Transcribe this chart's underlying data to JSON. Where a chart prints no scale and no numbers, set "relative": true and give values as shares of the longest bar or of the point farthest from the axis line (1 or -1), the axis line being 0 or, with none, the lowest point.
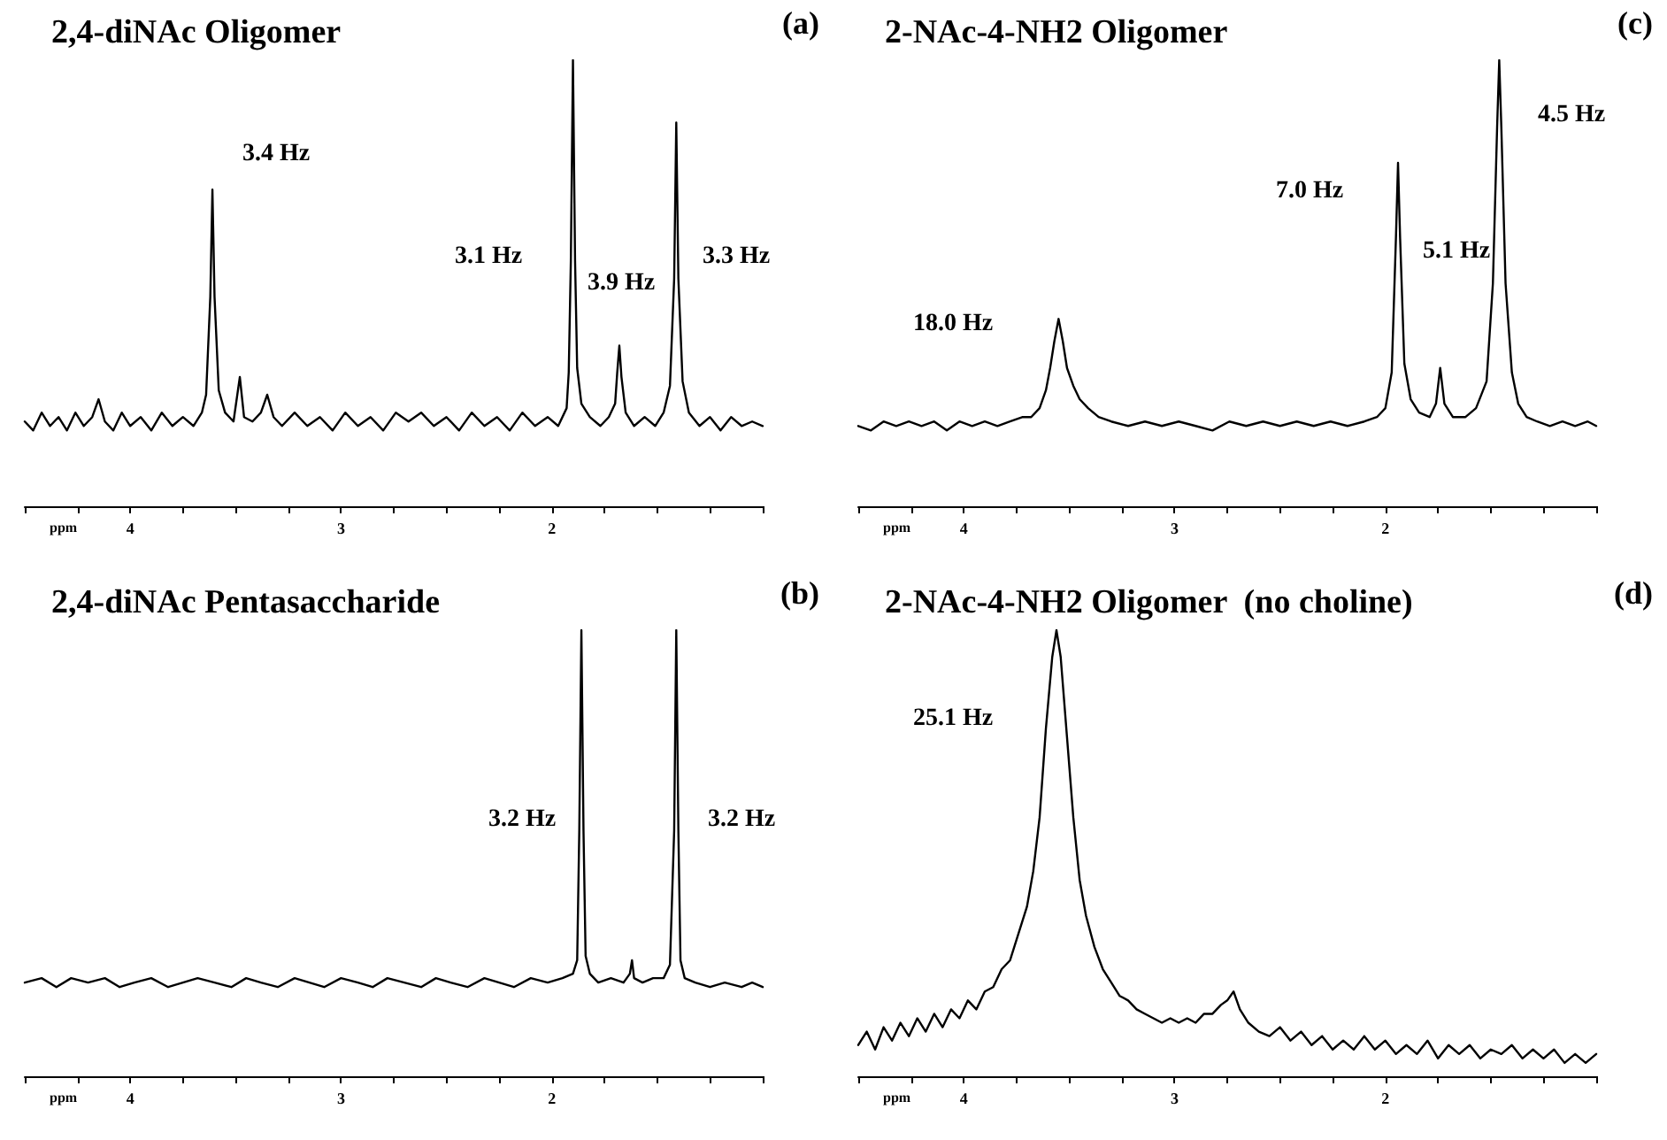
{
  "chart_data": [
    {
      "type": "line",
      "title": "2,4-diNAc Oligomer",
      "xlabel": "ppm",
      "relative": true,
      "grid": false,
      "tick_labels": "x",
      "color": "#000000",
      "xlim": [
        4.5,
        1.0
      ],
      "xticks": [
        {
          "value": 4.5,
          "label": null
        },
        {
          "value": 4.25,
          "label": null
        },
        4,
        {
          "value": 3.75,
          "label": null
        },
        {
          "value": 3.5,
          "label": null
        },
        {
          "value": 3.25,
          "label": null
        },
        3,
        {
          "value": 2.75,
          "label": null
        },
        {
          "value": 2.5,
          "label": null
        },
        {
          "value": 2.25,
          "label": null
        },
        2,
        {
          "value": 1.75,
          "label": null
        },
        {
          "value": 1.5,
          "label": null
        },
        {
          "value": 1.25,
          "label": null
        },
        {
          "value": 1.0,
          "label": null
        }
      ],
      "x": [
        4.5,
        4.46,
        4.42,
        4.38,
        4.34,
        4.3,
        4.26,
        4.22,
        4.18,
        4.15,
        4.12,
        4.08,
        4.04,
        4.0,
        3.95,
        3.9,
        3.85,
        3.8,
        3.75,
        3.7,
        3.66,
        3.64,
        3.62,
        3.61,
        3.6,
        3.58,
        3.55,
        3.51,
        3.48,
        3.46,
        3.42,
        3.38,
        3.35,
        3.32,
        3.28,
        3.22,
        3.16,
        3.1,
        3.04,
        2.98,
        2.92,
        2.86,
        2.8,
        2.74,
        2.68,
        2.62,
        2.56,
        2.5,
        2.44,
        2.38,
        2.32,
        2.26,
        2.2,
        2.14,
        2.08,
        2.02,
        1.97,
        1.93,
        1.92,
        1.91,
        1.9,
        1.89,
        1.88,
        1.86,
        1.82,
        1.77,
        1.73,
        1.7,
        1.69,
        1.68,
        1.67,
        1.65,
        1.61,
        1.56,
        1.51,
        1.47,
        1.44,
        1.42,
        1.41,
        1.4,
        1.38,
        1.35,
        1.3,
        1.25,
        1.2,
        1.15,
        1.1,
        1.05,
        1.0
      ],
      "values": [
        0.19,
        0.17,
        0.21,
        0.18,
        0.2,
        0.17,
        0.21,
        0.18,
        0.2,
        0.24,
        0.19,
        0.17,
        0.21,
        0.18,
        0.2,
        0.17,
        0.21,
        0.18,
        0.2,
        0.18,
        0.21,
        0.25,
        0.47,
        0.71,
        0.47,
        0.26,
        0.21,
        0.19,
        0.29,
        0.2,
        0.19,
        0.21,
        0.25,
        0.2,
        0.18,
        0.21,
        0.18,
        0.2,
        0.17,
        0.21,
        0.18,
        0.2,
        0.17,
        0.21,
        0.19,
        0.21,
        0.18,
        0.2,
        0.17,
        0.21,
        0.18,
        0.2,
        0.17,
        0.21,
        0.18,
        0.2,
        0.18,
        0.22,
        0.3,
        0.55,
        1.0,
        0.55,
        0.31,
        0.23,
        0.2,
        0.18,
        0.2,
        0.23,
        0.3,
        0.36,
        0.29,
        0.21,
        0.18,
        0.2,
        0.18,
        0.21,
        0.27,
        0.51,
        0.86,
        0.51,
        0.28,
        0.21,
        0.18,
        0.2,
        0.17,
        0.2,
        0.18,
        0.19,
        0.18
      ],
      "annotations": [
        "(a)",
        "3.4 Hz",
        "3.1 Hz",
        "3.9 Hz",
        "3.3 Hz"
      ]
    },
    {
      "type": "line",
      "title": "2-NAc-4-NH2 Oligomer",
      "xlabel": "ppm",
      "relative": true,
      "grid": false,
      "tick_labels": "x",
      "color": "#000000",
      "xlim": [
        4.5,
        1.0
      ],
      "xticks": [
        {
          "value": 4.5,
          "label": null
        },
        {
          "value": 4.25,
          "label": null
        },
        4,
        {
          "value": 3.75,
          "label": null
        },
        {
          "value": 3.5,
          "label": null
        },
        {
          "value": 3.25,
          "label": null
        },
        3,
        {
          "value": 2.75,
          "label": null
        },
        {
          "value": 2.5,
          "label": null
        },
        {
          "value": 2.25,
          "label": null
        },
        2,
        {
          "value": 1.75,
          "label": null
        },
        {
          "value": 1.5,
          "label": null
        },
        {
          "value": 1.25,
          "label": null
        },
        {
          "value": 1.0,
          "label": null
        }
      ],
      "x": [
        4.5,
        4.44,
        4.38,
        4.32,
        4.26,
        4.2,
        4.14,
        4.08,
        4.02,
        3.96,
        3.9,
        3.84,
        3.78,
        3.72,
        3.68,
        3.64,
        3.61,
        3.59,
        3.57,
        3.55,
        3.53,
        3.51,
        3.48,
        3.45,
        3.41,
        3.36,
        3.3,
        3.22,
        3.14,
        3.06,
        2.98,
        2.9,
        2.82,
        2.74,
        2.66,
        2.58,
        2.5,
        2.42,
        2.34,
        2.26,
        2.18,
        2.1,
        2.04,
        2.0,
        1.97,
        1.95,
        1.94,
        1.93,
        1.91,
        1.88,
        1.84,
        1.79,
        1.76,
        1.74,
        1.72,
        1.68,
        1.62,
        1.57,
        1.52,
        1.49,
        1.47,
        1.46,
        1.45,
        1.43,
        1.4,
        1.37,
        1.33,
        1.28,
        1.22,
        1.16,
        1.1,
        1.04,
        1.0
      ],
      "values": [
        0.18,
        0.17,
        0.19,
        0.18,
        0.19,
        0.18,
        0.19,
        0.17,
        0.19,
        0.18,
        0.19,
        0.18,
        0.19,
        0.2,
        0.2,
        0.22,
        0.26,
        0.31,
        0.37,
        0.42,
        0.37,
        0.31,
        0.27,
        0.24,
        0.22,
        0.2,
        0.19,
        0.18,
        0.19,
        0.18,
        0.19,
        0.18,
        0.17,
        0.19,
        0.18,
        0.19,
        0.18,
        0.19,
        0.18,
        0.19,
        0.18,
        0.19,
        0.2,
        0.22,
        0.3,
        0.6,
        0.77,
        0.6,
        0.32,
        0.24,
        0.21,
        0.2,
        0.23,
        0.31,
        0.23,
        0.2,
        0.2,
        0.22,
        0.28,
        0.5,
        0.85,
        1.0,
        0.85,
        0.5,
        0.3,
        0.23,
        0.2,
        0.19,
        0.18,
        0.19,
        0.18,
        0.19,
        0.18
      ],
      "annotations": [
        "(c)",
        "18.0 Hz",
        "7.0 Hz",
        "5.1 Hz",
        "4.5 Hz"
      ]
    },
    {
      "type": "line",
      "title": "2,4-diNAc Pentasaccharide",
      "xlabel": "ppm",
      "relative": true,
      "grid": false,
      "tick_labels": "x",
      "color": "#000000",
      "xlim": [
        4.5,
        1.0
      ],
      "xticks": [
        {
          "value": 4.5,
          "label": null
        },
        {
          "value": 4.25,
          "label": null
        },
        4,
        {
          "value": 3.75,
          "label": null
        },
        {
          "value": 3.5,
          "label": null
        },
        {
          "value": 3.25,
          "label": null
        },
        3,
        {
          "value": 2.75,
          "label": null
        },
        {
          "value": 2.5,
          "label": null
        },
        {
          "value": 2.25,
          "label": null
        },
        2,
        {
          "value": 1.75,
          "label": null
        },
        {
          "value": 1.5,
          "label": null
        },
        {
          "value": 1.25,
          "label": null
        },
        {
          "value": 1.0,
          "label": null
        }
      ],
      "x": [
        4.5,
        4.42,
        4.35,
        4.28,
        4.2,
        4.12,
        4.05,
        3.98,
        3.9,
        3.82,
        3.75,
        3.68,
        3.6,
        3.52,
        3.45,
        3.38,
        3.3,
        3.22,
        3.15,
        3.08,
        3.0,
        2.92,
        2.85,
        2.78,
        2.7,
        2.62,
        2.55,
        2.48,
        2.4,
        2.32,
        2.25,
        2.18,
        2.1,
        2.02,
        1.95,
        1.9,
        1.88,
        1.87,
        1.86,
        1.85,
        1.84,
        1.82,
        1.78,
        1.72,
        1.66,
        1.63,
        1.62,
        1.61,
        1.57,
        1.52,
        1.47,
        1.44,
        1.42,
        1.41,
        1.4,
        1.39,
        1.37,
        1.32,
        1.25,
        1.18,
        1.1,
        1.05,
        1.0
      ],
      "values": [
        0.21,
        0.22,
        0.2,
        0.22,
        0.21,
        0.22,
        0.2,
        0.21,
        0.22,
        0.2,
        0.21,
        0.22,
        0.21,
        0.2,
        0.22,
        0.21,
        0.2,
        0.22,
        0.21,
        0.2,
        0.22,
        0.21,
        0.2,
        0.22,
        0.21,
        0.2,
        0.22,
        0.21,
        0.2,
        0.22,
        0.21,
        0.2,
        0.22,
        0.21,
        0.22,
        0.23,
        0.26,
        0.55,
        1.0,
        0.55,
        0.27,
        0.23,
        0.21,
        0.22,
        0.21,
        0.23,
        0.26,
        0.22,
        0.21,
        0.22,
        0.22,
        0.25,
        0.55,
        1.0,
        0.55,
        0.26,
        0.22,
        0.21,
        0.2,
        0.21,
        0.2,
        0.21,
        0.2
      ],
      "annotations": [
        "(b)",
        "3.2 Hz",
        "3.2 Hz"
      ]
    },
    {
      "type": "line",
      "title": "2-NAc-4-NH2 Oligomer  (no choline)",
      "xlabel": "ppm",
      "relative": true,
      "grid": false,
      "tick_labels": "x",
      "color": "#000000",
      "xlim": [
        4.5,
        1.0
      ],
      "xticks": [
        {
          "value": 4.5,
          "label": null
        },
        {
          "value": 4.25,
          "label": null
        },
        4,
        {
          "value": 3.75,
          "label": null
        },
        {
          "value": 3.5,
          "label": null
        },
        {
          "value": 3.25,
          "label": null
        },
        3,
        {
          "value": 2.75,
          "label": null
        },
        {
          "value": 2.5,
          "label": null
        },
        {
          "value": 2.25,
          "label": null
        },
        2,
        {
          "value": 1.75,
          "label": null
        },
        {
          "value": 1.5,
          "label": null
        },
        {
          "value": 1.25,
          "label": null
        },
        {
          "value": 1.0,
          "label": null
        }
      ],
      "x": [
        4.5,
        4.46,
        4.42,
        4.38,
        4.34,
        4.3,
        4.26,
        4.22,
        4.18,
        4.14,
        4.1,
        4.06,
        4.02,
        3.98,
        3.94,
        3.9,
        3.86,
        3.82,
        3.78,
        3.74,
        3.7,
        3.67,
        3.64,
        3.61,
        3.58,
        3.56,
        3.54,
        3.51,
        3.48,
        3.45,
        3.42,
        3.38,
        3.34,
        3.3,
        3.26,
        3.22,
        3.18,
        3.14,
        3.1,
        3.06,
        3.02,
        2.98,
        2.94,
        2.9,
        2.86,
        2.82,
        2.78,
        2.75,
        2.72,
        2.69,
        2.65,
        2.6,
        2.55,
        2.5,
        2.45,
        2.4,
        2.35,
        2.3,
        2.25,
        2.2,
        2.15,
        2.1,
        2.05,
        2.0,
        1.95,
        1.9,
        1.85,
        1.8,
        1.75,
        1.7,
        1.65,
        1.6,
        1.55,
        1.5,
        1.45,
        1.4,
        1.35,
        1.3,
        1.25,
        1.2,
        1.15,
        1.1,
        1.05,
        1.0
      ],
      "values": [
        0.07,
        0.1,
        0.06,
        0.11,
        0.08,
        0.12,
        0.09,
        0.13,
        0.1,
        0.14,
        0.11,
        0.15,
        0.13,
        0.17,
        0.15,
        0.19,
        0.2,
        0.24,
        0.26,
        0.32,
        0.38,
        0.46,
        0.58,
        0.78,
        0.94,
        1.0,
        0.94,
        0.76,
        0.58,
        0.44,
        0.36,
        0.29,
        0.24,
        0.21,
        0.18,
        0.17,
        0.15,
        0.14,
        0.13,
        0.12,
        0.13,
        0.12,
        0.13,
        0.12,
        0.14,
        0.14,
        0.16,
        0.17,
        0.19,
        0.15,
        0.12,
        0.1,
        0.09,
        0.11,
        0.08,
        0.1,
        0.07,
        0.09,
        0.06,
        0.08,
        0.06,
        0.09,
        0.06,
        0.08,
        0.05,
        0.07,
        0.05,
        0.08,
        0.04,
        0.07,
        0.05,
        0.07,
        0.04,
        0.06,
        0.05,
        0.07,
        0.04,
        0.06,
        0.04,
        0.06,
        0.03,
        0.05,
        0.03,
        0.05
      ],
      "annotations": [
        "(d)",
        "25.1 Hz"
      ]
    }
  ]
}
